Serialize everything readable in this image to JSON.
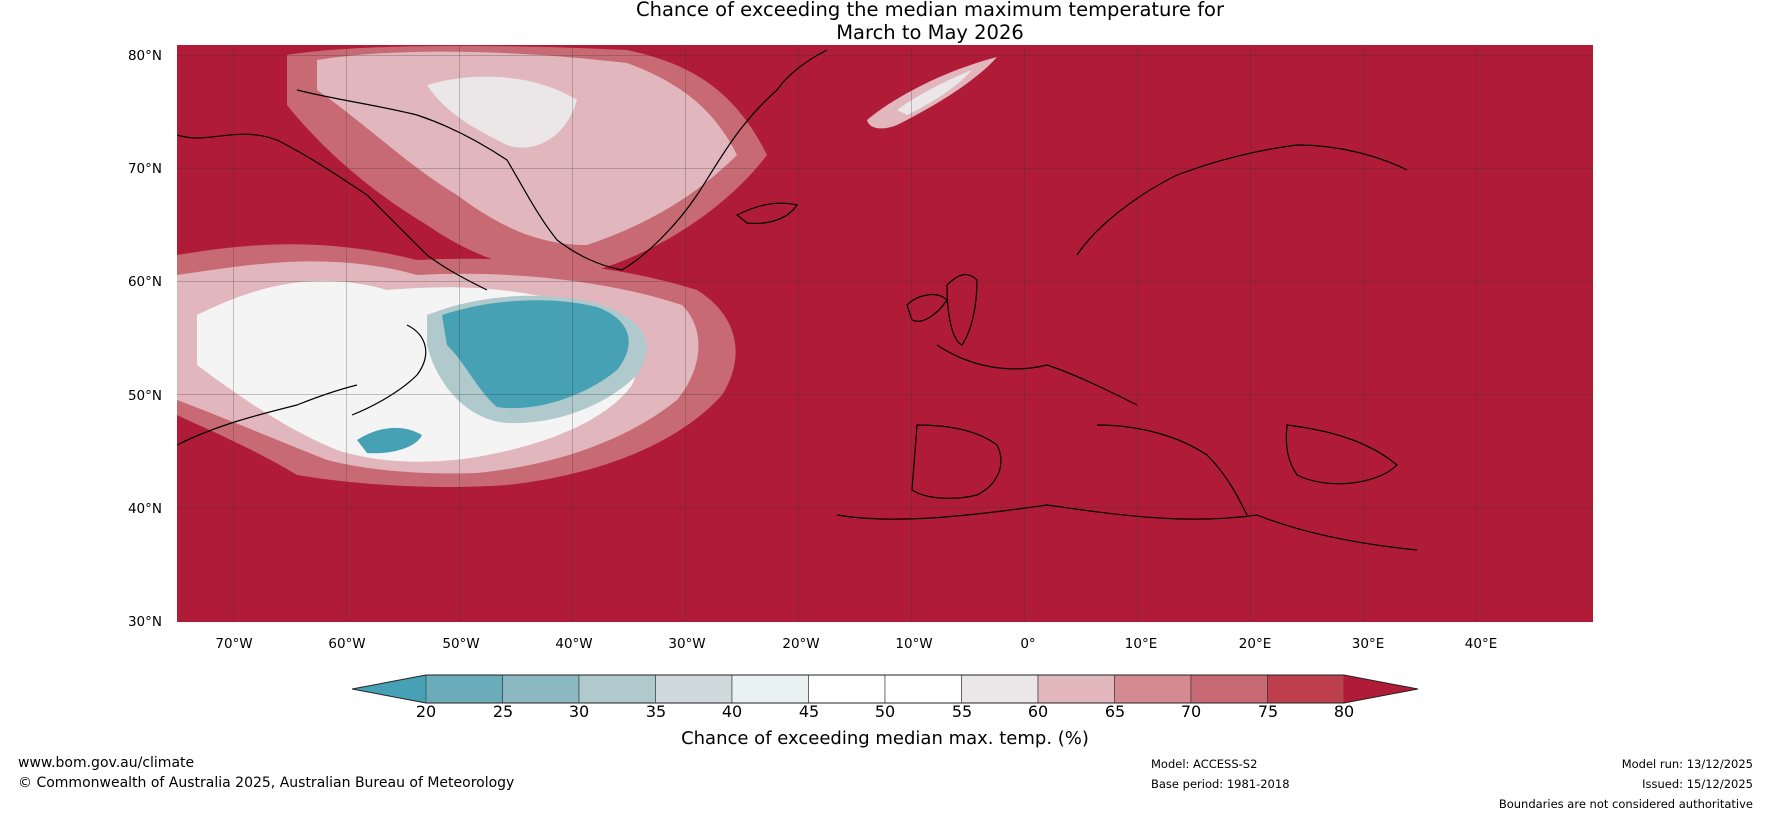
{
  "title": {
    "line1": "Chance of exceeding the median maximum temperature for",
    "line2": "March to May 2026"
  },
  "map": {
    "region": "North Atlantic and Europe",
    "background_color": "#b01c37",
    "lat_labels": [
      "80°N",
      "70°N",
      "60°N",
      "50°N",
      "40°N",
      "30°N"
    ],
    "lon_labels": [
      "70°W",
      "60°W",
      "50°W",
      "40°W",
      "30°W",
      "20°W",
      "10°W",
      "0°",
      "10°E",
      "20°E",
      "30°E",
      "40°E"
    ],
    "lat_range": [
      30,
      81
    ],
    "lon_range": [
      -75,
      50
    ]
  },
  "colorbar": {
    "label": "Chance of exceeding median max. temp. (%)",
    "ticks": [
      "20",
      "25",
      "30",
      "35",
      "40",
      "45",
      "50",
      "55",
      "60",
      "65",
      "70",
      "75",
      "80"
    ],
    "colors": [
      "#46a1b4",
      "#6aacba",
      "#8cb8c4",
      "#afc9cd",
      "#cfd9dc",
      "#e9f1f2",
      "#ffffff",
      "#ffffff",
      "#ebe7e8",
      "#e1b6bd",
      "#d58a92",
      "#c86a73",
      "#bd3f4e",
      "#b01c37"
    ]
  },
  "footer": {
    "website": "www.bom.gov.au/climate",
    "copyright": "© Commonwealth of Australia 2025, Australian Bureau of Meteorology",
    "model": "Model: ACCESS-S2",
    "base_period": "Base period: 1981-2018",
    "model_run": "Model run: 13/12/2025",
    "issued": "Issued: 15/12/2025",
    "disclaimer": "Boundaries are not considered authoritative"
  }
}
